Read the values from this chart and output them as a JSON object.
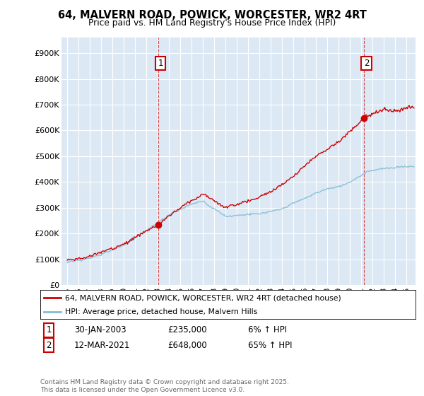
{
  "title": "64, MALVERN ROAD, POWICK, WORCESTER, WR2 4RT",
  "subtitle": "Price paid vs. HM Land Registry's House Price Index (HPI)",
  "legend_line1": "64, MALVERN ROAD, POWICK, WORCESTER, WR2 4RT (detached house)",
  "legend_line2": "HPI: Average price, detached house, Malvern Hills",
  "annotation1_date": "30-JAN-2003",
  "annotation1_price": "£235,000",
  "annotation1_hpi": "6% ↑ HPI",
  "annotation2_date": "12-MAR-2021",
  "annotation2_price": "£648,000",
  "annotation2_hpi": "65% ↑ HPI",
  "sale1_x": 2003.08,
  "sale1_y": 235000,
  "sale2_x": 2021.21,
  "sale2_y": 648000,
  "ytick_labels": [
    "£0",
    "£100K",
    "£200K",
    "£300K",
    "£400K",
    "£500K",
    "£600K",
    "£700K",
    "£800K",
    "£900K"
  ],
  "ytick_values": [
    0,
    100000,
    200000,
    300000,
    400000,
    500000,
    600000,
    700000,
    800000,
    900000
  ],
  "ylim": [
    0,
    960000
  ],
  "xlim": [
    1994.5,
    2025.8
  ],
  "xtick_years": [
    1995,
    1996,
    1997,
    1998,
    1999,
    2000,
    2001,
    2002,
    2003,
    2004,
    2005,
    2006,
    2007,
    2008,
    2009,
    2010,
    2011,
    2012,
    2013,
    2014,
    2015,
    2016,
    2017,
    2018,
    2019,
    2020,
    2021,
    2022,
    2023,
    2024,
    2025
  ],
  "bg_color": "#dce9f5",
  "red_color": "#cc0000",
  "blue_color": "#85bdd4",
  "grid_color": "#ffffff",
  "footnote": "Contains HM Land Registry data © Crown copyright and database right 2025.\nThis data is licensed under the Open Government Licence v3.0."
}
